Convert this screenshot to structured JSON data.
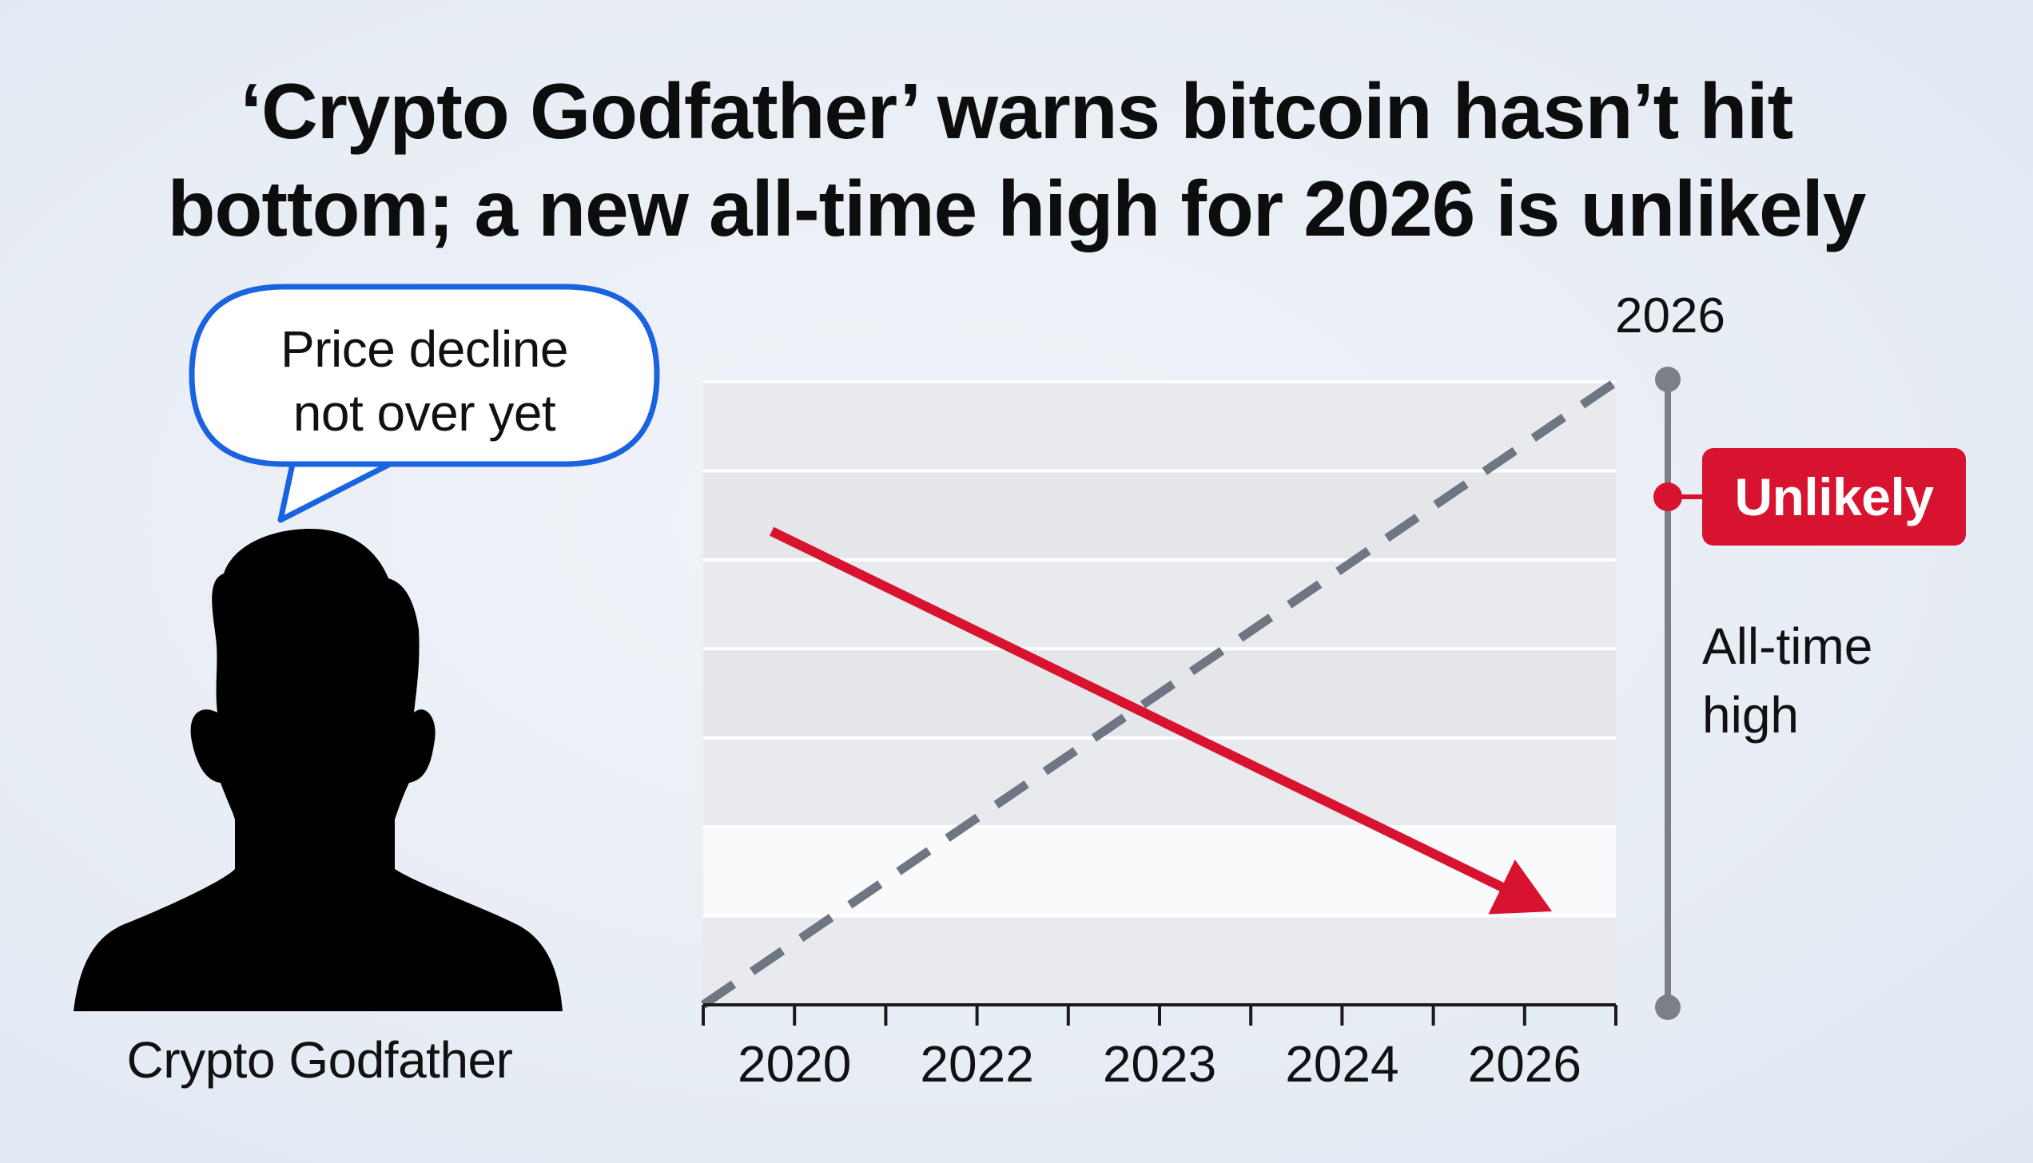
{
  "headline": {
    "line1": "‘Crypto Godfather’ warns bitcoin hasn’t hit",
    "line2": "bottom; a new all-time high for 2026 is unlikely"
  },
  "speech_bubble": {
    "line1": "Price decline",
    "line2": "not over yet"
  },
  "person": {
    "caption": "Crypto Godfather",
    "icon": "person-silhouette-icon"
  },
  "chart_data": {
    "type": "line",
    "categories": [
      "2020",
      "2022",
      "2023",
      "2024",
      "2026"
    ],
    "series": [
      {
        "style": "solid-arrow",
        "color": "#d7132f",
        "trend": "down",
        "start_fraction": 0.76,
        "end_fraction": 0.15
      },
      {
        "style": "dashed",
        "color": "#6e7683",
        "trend": "up",
        "start_fraction": 0.0,
        "end_fraction": 1.0
      }
    ],
    "grid": true,
    "highlight_band": "bottom",
    "top_year_label": "2026"
  },
  "timeline": {
    "badge_label": "Unlikely",
    "label_line1": "All-time",
    "label_line2": "high"
  },
  "colors": {
    "accent_red": "#d7132f",
    "bubble_blue": "#1a63e0",
    "dash_gray": "#6e7683",
    "text": "#111111"
  }
}
